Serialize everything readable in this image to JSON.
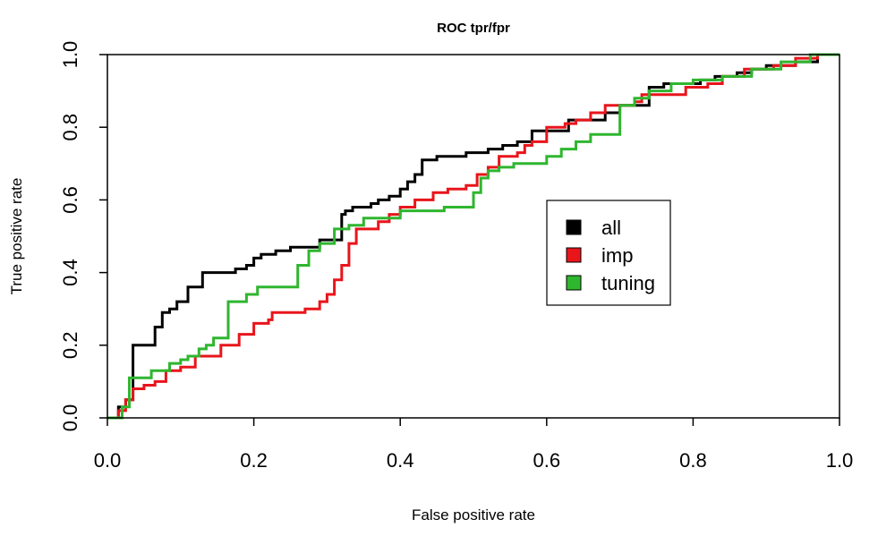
{
  "chart_data": {
    "type": "line",
    "title": "ROC tpr/fpr",
    "xlabel": "False positive rate",
    "ylabel": "True positive rate",
    "xlim": [
      0,
      1
    ],
    "ylim": [
      0,
      1
    ],
    "xticks": [
      "0.0",
      "0.2",
      "0.4",
      "0.6",
      "0.8",
      "1.0"
    ],
    "yticks": [
      "0.0",
      "0.2",
      "0.4",
      "0.6",
      "0.8",
      "1.0"
    ],
    "grid": false,
    "legend_position": "center-right",
    "series": [
      {
        "name": "all",
        "color": "#000000",
        "x": [
          0,
          0.015,
          0.015,
          0.025,
          0.025,
          0.035,
          0.035,
          0.065,
          0.065,
          0.075,
          0.075,
          0.085,
          0.085,
          0.095,
          0.095,
          0.11,
          0.11,
          0.13,
          0.13,
          0.175,
          0.175,
          0.19,
          0.19,
          0.2,
          0.2,
          0.21,
          0.21,
          0.23,
          0.23,
          0.25,
          0.25,
          0.29,
          0.29,
          0.32,
          0.32,
          0.325,
          0.325,
          0.335,
          0.335,
          0.36,
          0.36,
          0.37,
          0.37,
          0.385,
          0.385,
          0.4,
          0.4,
          0.41,
          0.41,
          0.42,
          0.42,
          0.43,
          0.43,
          0.45,
          0.45,
          0.49,
          0.49,
          0.52,
          0.52,
          0.54,
          0.54,
          0.56,
          0.56,
          0.58,
          0.58,
          0.63,
          0.63,
          0.68,
          0.68,
          0.7,
          0.7,
          0.74,
          0.74,
          0.76,
          0.76,
          0.81,
          0.81,
          0.83,
          0.83,
          0.86,
          0.86,
          0.88,
          0.88,
          0.9,
          0.9,
          0.94,
          0.94,
          0.97,
          0.97,
          1.0
        ],
        "y": [
          0,
          0,
          0.03,
          0.03,
          0.05,
          0.05,
          0.2,
          0.2,
          0.25,
          0.25,
          0.29,
          0.29,
          0.3,
          0.3,
          0.32,
          0.32,
          0.36,
          0.36,
          0.4,
          0.4,
          0.41,
          0.41,
          0.42,
          0.42,
          0.44,
          0.44,
          0.45,
          0.45,
          0.46,
          0.46,
          0.47,
          0.47,
          0.49,
          0.49,
          0.56,
          0.56,
          0.57,
          0.57,
          0.58,
          0.58,
          0.59,
          0.59,
          0.6,
          0.6,
          0.61,
          0.61,
          0.63,
          0.63,
          0.65,
          0.65,
          0.67,
          0.67,
          0.71,
          0.71,
          0.72,
          0.72,
          0.73,
          0.73,
          0.74,
          0.74,
          0.75,
          0.75,
          0.76,
          0.76,
          0.79,
          0.79,
          0.82,
          0.82,
          0.84,
          0.84,
          0.86,
          0.86,
          0.91,
          0.91,
          0.92,
          0.92,
          0.93,
          0.93,
          0.94,
          0.94,
          0.95,
          0.95,
          0.96,
          0.96,
          0.97,
          0.97,
          0.98,
          0.98,
          1.0,
          1.0
        ]
      },
      {
        "name": "imp",
        "color": "#e8151b",
        "x": [
          0,
          0.015,
          0.015,
          0.025,
          0.025,
          0.035,
          0.035,
          0.05,
          0.05,
          0.065,
          0.065,
          0.08,
          0.08,
          0.1,
          0.1,
          0.12,
          0.12,
          0.155,
          0.155,
          0.18,
          0.18,
          0.2,
          0.2,
          0.22,
          0.22,
          0.225,
          0.225,
          0.27,
          0.27,
          0.29,
          0.29,
          0.3,
          0.3,
          0.31,
          0.31,
          0.32,
          0.32,
          0.33,
          0.33,
          0.34,
          0.34,
          0.37,
          0.37,
          0.385,
          0.385,
          0.4,
          0.4,
          0.42,
          0.42,
          0.445,
          0.445,
          0.465,
          0.465,
          0.49,
          0.49,
          0.505,
          0.505,
          0.52,
          0.52,
          0.535,
          0.535,
          0.56,
          0.56,
          0.57,
          0.57,
          0.58,
          0.58,
          0.6,
          0.6,
          0.625,
          0.625,
          0.64,
          0.64,
          0.66,
          0.66,
          0.68,
          0.68,
          0.72,
          0.72,
          0.73,
          0.73,
          0.79,
          0.79,
          0.82,
          0.82,
          0.84,
          0.84,
          0.87,
          0.87,
          0.91,
          0.91,
          0.94,
          0.94,
          0.97,
          0.97,
          1.0
        ],
        "y": [
          0,
          0,
          0.02,
          0.02,
          0.05,
          0.05,
          0.08,
          0.08,
          0.09,
          0.09,
          0.1,
          0.1,
          0.13,
          0.13,
          0.14,
          0.14,
          0.17,
          0.17,
          0.2,
          0.2,
          0.23,
          0.23,
          0.26,
          0.26,
          0.27,
          0.27,
          0.29,
          0.29,
          0.3,
          0.3,
          0.32,
          0.32,
          0.34,
          0.34,
          0.38,
          0.38,
          0.42,
          0.42,
          0.48,
          0.48,
          0.52,
          0.52,
          0.54,
          0.54,
          0.56,
          0.56,
          0.58,
          0.58,
          0.6,
          0.6,
          0.62,
          0.62,
          0.63,
          0.63,
          0.64,
          0.64,
          0.67,
          0.67,
          0.69,
          0.69,
          0.72,
          0.72,
          0.73,
          0.73,
          0.75,
          0.75,
          0.76,
          0.76,
          0.8,
          0.8,
          0.81,
          0.81,
          0.82,
          0.82,
          0.84,
          0.84,
          0.86,
          0.86,
          0.87,
          0.87,
          0.89,
          0.89,
          0.91,
          0.91,
          0.92,
          0.92,
          0.94,
          0.94,
          0.96,
          0.96,
          0.97,
          0.97,
          0.99,
          0.99,
          1.0,
          1.0
        ]
      },
      {
        "name": "tuning",
        "color": "#2fb62f",
        "x": [
          0,
          0.02,
          0.02,
          0.03,
          0.03,
          0.06,
          0.06,
          0.085,
          0.085,
          0.1,
          0.1,
          0.11,
          0.11,
          0.125,
          0.125,
          0.135,
          0.135,
          0.145,
          0.145,
          0.165,
          0.165,
          0.19,
          0.19,
          0.205,
          0.205,
          0.26,
          0.26,
          0.275,
          0.275,
          0.29,
          0.29,
          0.31,
          0.31,
          0.33,
          0.33,
          0.35,
          0.35,
          0.4,
          0.4,
          0.46,
          0.46,
          0.5,
          0.5,
          0.51,
          0.51,
          0.52,
          0.52,
          0.535,
          0.535,
          0.555,
          0.555,
          0.6,
          0.6,
          0.62,
          0.62,
          0.64,
          0.64,
          0.66,
          0.66,
          0.7,
          0.7,
          0.72,
          0.72,
          0.74,
          0.74,
          0.77,
          0.77,
          0.8,
          0.8,
          0.84,
          0.84,
          0.88,
          0.88,
          0.92,
          0.92,
          0.96,
          0.96,
          1.0
        ],
        "y": [
          0,
          0,
          0.03,
          0.03,
          0.11,
          0.11,
          0.13,
          0.13,
          0.15,
          0.15,
          0.16,
          0.16,
          0.17,
          0.17,
          0.19,
          0.19,
          0.2,
          0.2,
          0.22,
          0.22,
          0.32,
          0.32,
          0.34,
          0.34,
          0.36,
          0.36,
          0.42,
          0.42,
          0.46,
          0.46,
          0.48,
          0.48,
          0.52,
          0.52,
          0.53,
          0.53,
          0.55,
          0.55,
          0.57,
          0.57,
          0.58,
          0.58,
          0.62,
          0.62,
          0.66,
          0.66,
          0.68,
          0.68,
          0.69,
          0.69,
          0.7,
          0.7,
          0.72,
          0.72,
          0.74,
          0.74,
          0.76,
          0.76,
          0.78,
          0.78,
          0.86,
          0.86,
          0.88,
          0.88,
          0.9,
          0.9,
          0.92,
          0.92,
          0.93,
          0.93,
          0.94,
          0.94,
          0.96,
          0.96,
          0.98,
          0.98,
          1.0,
          1.0
        ]
      }
    ]
  }
}
